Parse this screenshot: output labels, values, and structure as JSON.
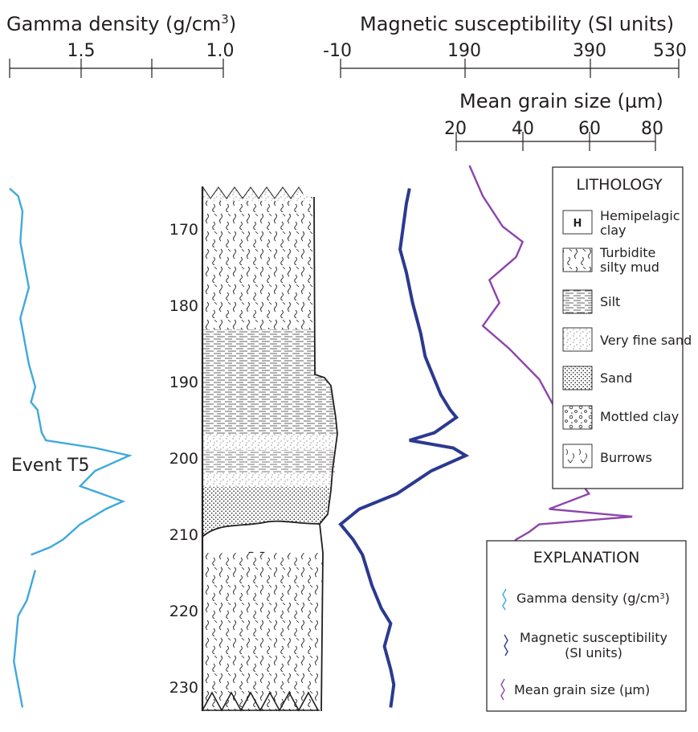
{
  "axes": {
    "gamma": {
      "title": "Gamma density (g/cm",
      "title_sup": "3",
      "title_end": ")",
      "ticks": [
        "1.5",
        "1.0"
      ],
      "range": [
        2.0,
        1.0
      ]
    },
    "magnetic": {
      "title": "Magnetic susceptibility (SI units)",
      "ticks": [
        "-10",
        "190",
        "390",
        "530"
      ],
      "range": [
        -10,
        530
      ]
    },
    "grain": {
      "title": "Mean grain size (µm)",
      "ticks": [
        "20",
        "40",
        "60",
        "80"
      ],
      "range": [
        20,
        80
      ]
    }
  },
  "depth_labels": [
    "170",
    "180",
    "190",
    "200",
    "210",
    "220",
    "230"
  ],
  "column": {
    "hemipelagic_marker": "H"
  },
  "event_label": "Event T5",
  "lithology": {
    "title": "LITHOLOGY",
    "items": [
      {
        "key": "hemipelagic",
        "label": [
          "Hemipelagic",
          "clay"
        ],
        "symbol": "H"
      },
      {
        "key": "turbidite",
        "label": [
          "Turbidite",
          "silty mud"
        ]
      },
      {
        "key": "silt",
        "label": [
          "Silt"
        ]
      },
      {
        "key": "vfsand",
        "label": [
          "Very fine sand"
        ]
      },
      {
        "key": "sand",
        "label": [
          "Sand"
        ]
      },
      {
        "key": "mottled",
        "label": [
          "Mottled clay"
        ]
      },
      {
        "key": "burrows",
        "label": [
          "Burrows"
        ]
      }
    ]
  },
  "explanation": {
    "title": "EXPLANATION",
    "items": [
      {
        "key": "gamma",
        "label": [
          "Gamma density (g/cm",
          "3",
          ")"
        ],
        "color": "#3fa9dd"
      },
      {
        "key": "magnetic",
        "label": [
          "Magnetic susceptibility",
          "(SI units)"
        ],
        "color": "#2b3990"
      },
      {
        "key": "grain",
        "label": [
          "Mean grain size (µm)"
        ],
        "color": "#8e44ad"
      }
    ]
  },
  "chart_data": {
    "type": "line",
    "y_axis": "depth (log scale labels)",
    "depth_ticks": [
      170,
      180,
      190,
      200,
      210,
      220,
      230
    ],
    "series": [
      {
        "name": "Gamma density (g/cm3)",
        "color": "#3fa9dd",
        "segments": [
          [
            [
              1.0,
              165
            ],
            [
              1.04,
              166
            ],
            [
              1.06,
              168
            ],
            [
              1.05,
              172
            ],
            [
              1.07,
              175
            ],
            [
              1.09,
              178
            ],
            [
              1.07,
              180
            ],
            [
              1.05,
              182
            ],
            [
              1.07,
              185
            ],
            [
              1.09,
              188
            ],
            [
              1.12,
              191
            ],
            [
              1.1,
              193
            ],
            [
              1.13,
              194
            ],
            [
              1.15,
              197
            ],
            [
              1.17,
              198
            ],
            [
              1.4,
              199
            ],
            [
              1.56,
              200
            ],
            [
              1.4,
              202
            ],
            [
              1.33,
              204
            ],
            [
              1.53,
              206
            ],
            [
              1.45,
              207
            ],
            [
              1.33,
              209
            ],
            [
              1.25,
              211
            ],
            [
              1.19,
              212
            ],
            [
              1.1,
              213
            ]
          ],
          [
            [
              1.12,
              215
            ],
            [
              1.1,
              217
            ],
            [
              1.08,
              219
            ],
            [
              1.04,
              221
            ],
            [
              1.03,
              224
            ],
            [
              1.02,
              227
            ],
            [
              1.04,
              230
            ],
            [
              1.06,
              233
            ]
          ]
        ]
      },
      {
        "name": "Magnetic susceptibility (SI units)",
        "color": "#2b3990",
        "segments": [
          [
            [
              100,
              165
            ],
            [
              95,
              167
            ],
            [
              90,
              170
            ],
            [
              85,
              173
            ],
            [
              95,
              176
            ],
            [
              105,
              180
            ],
            [
              118,
              184
            ],
            [
              125,
              187
            ],
            [
              135,
              189
            ],
            [
              150,
              192
            ],
            [
              165,
              194
            ],
            [
              175,
              195
            ],
            [
              140,
              197
            ],
            [
              100,
              198
            ],
            [
              170,
              199
            ],
            [
              190,
              200
            ],
            [
              135,
              202
            ],
            [
              80,
              205
            ],
            [
              20,
              207
            ],
            [
              -10,
              209
            ],
            [
              10,
              211
            ],
            [
              25,
              213
            ],
            [
              40,
              217
            ],
            [
              55,
              220
            ],
            [
              70,
              222
            ],
            [
              60,
              225
            ],
            [
              70,
              228
            ],
            [
              75,
              230
            ],
            [
              70,
              233
            ]
          ]
        ]
      },
      {
        "name": "Mean grain size (µm)",
        "color": "#8e44ad",
        "segments": [
          [
            [
              24,
              162
            ],
            [
              28,
              166
            ],
            [
              34,
              170
            ],
            [
              40,
              172
            ],
            [
              38,
              174
            ],
            [
              30,
              177
            ],
            [
              33,
              180
            ],
            [
              28,
              183
            ],
            [
              36,
              186
            ],
            [
              45,
              190
            ],
            [
              50,
              194
            ],
            [
              52,
              198
            ],
            [
              55,
              202
            ],
            [
              60,
              205
            ],
            [
              48,
              207
            ],
            [
              73,
              208
            ],
            [
              45,
              209
            ],
            [
              42,
              210
            ],
            [
              38,
              211
            ],
            [
              35,
              213
            ]
          ]
        ]
      }
    ]
  }
}
